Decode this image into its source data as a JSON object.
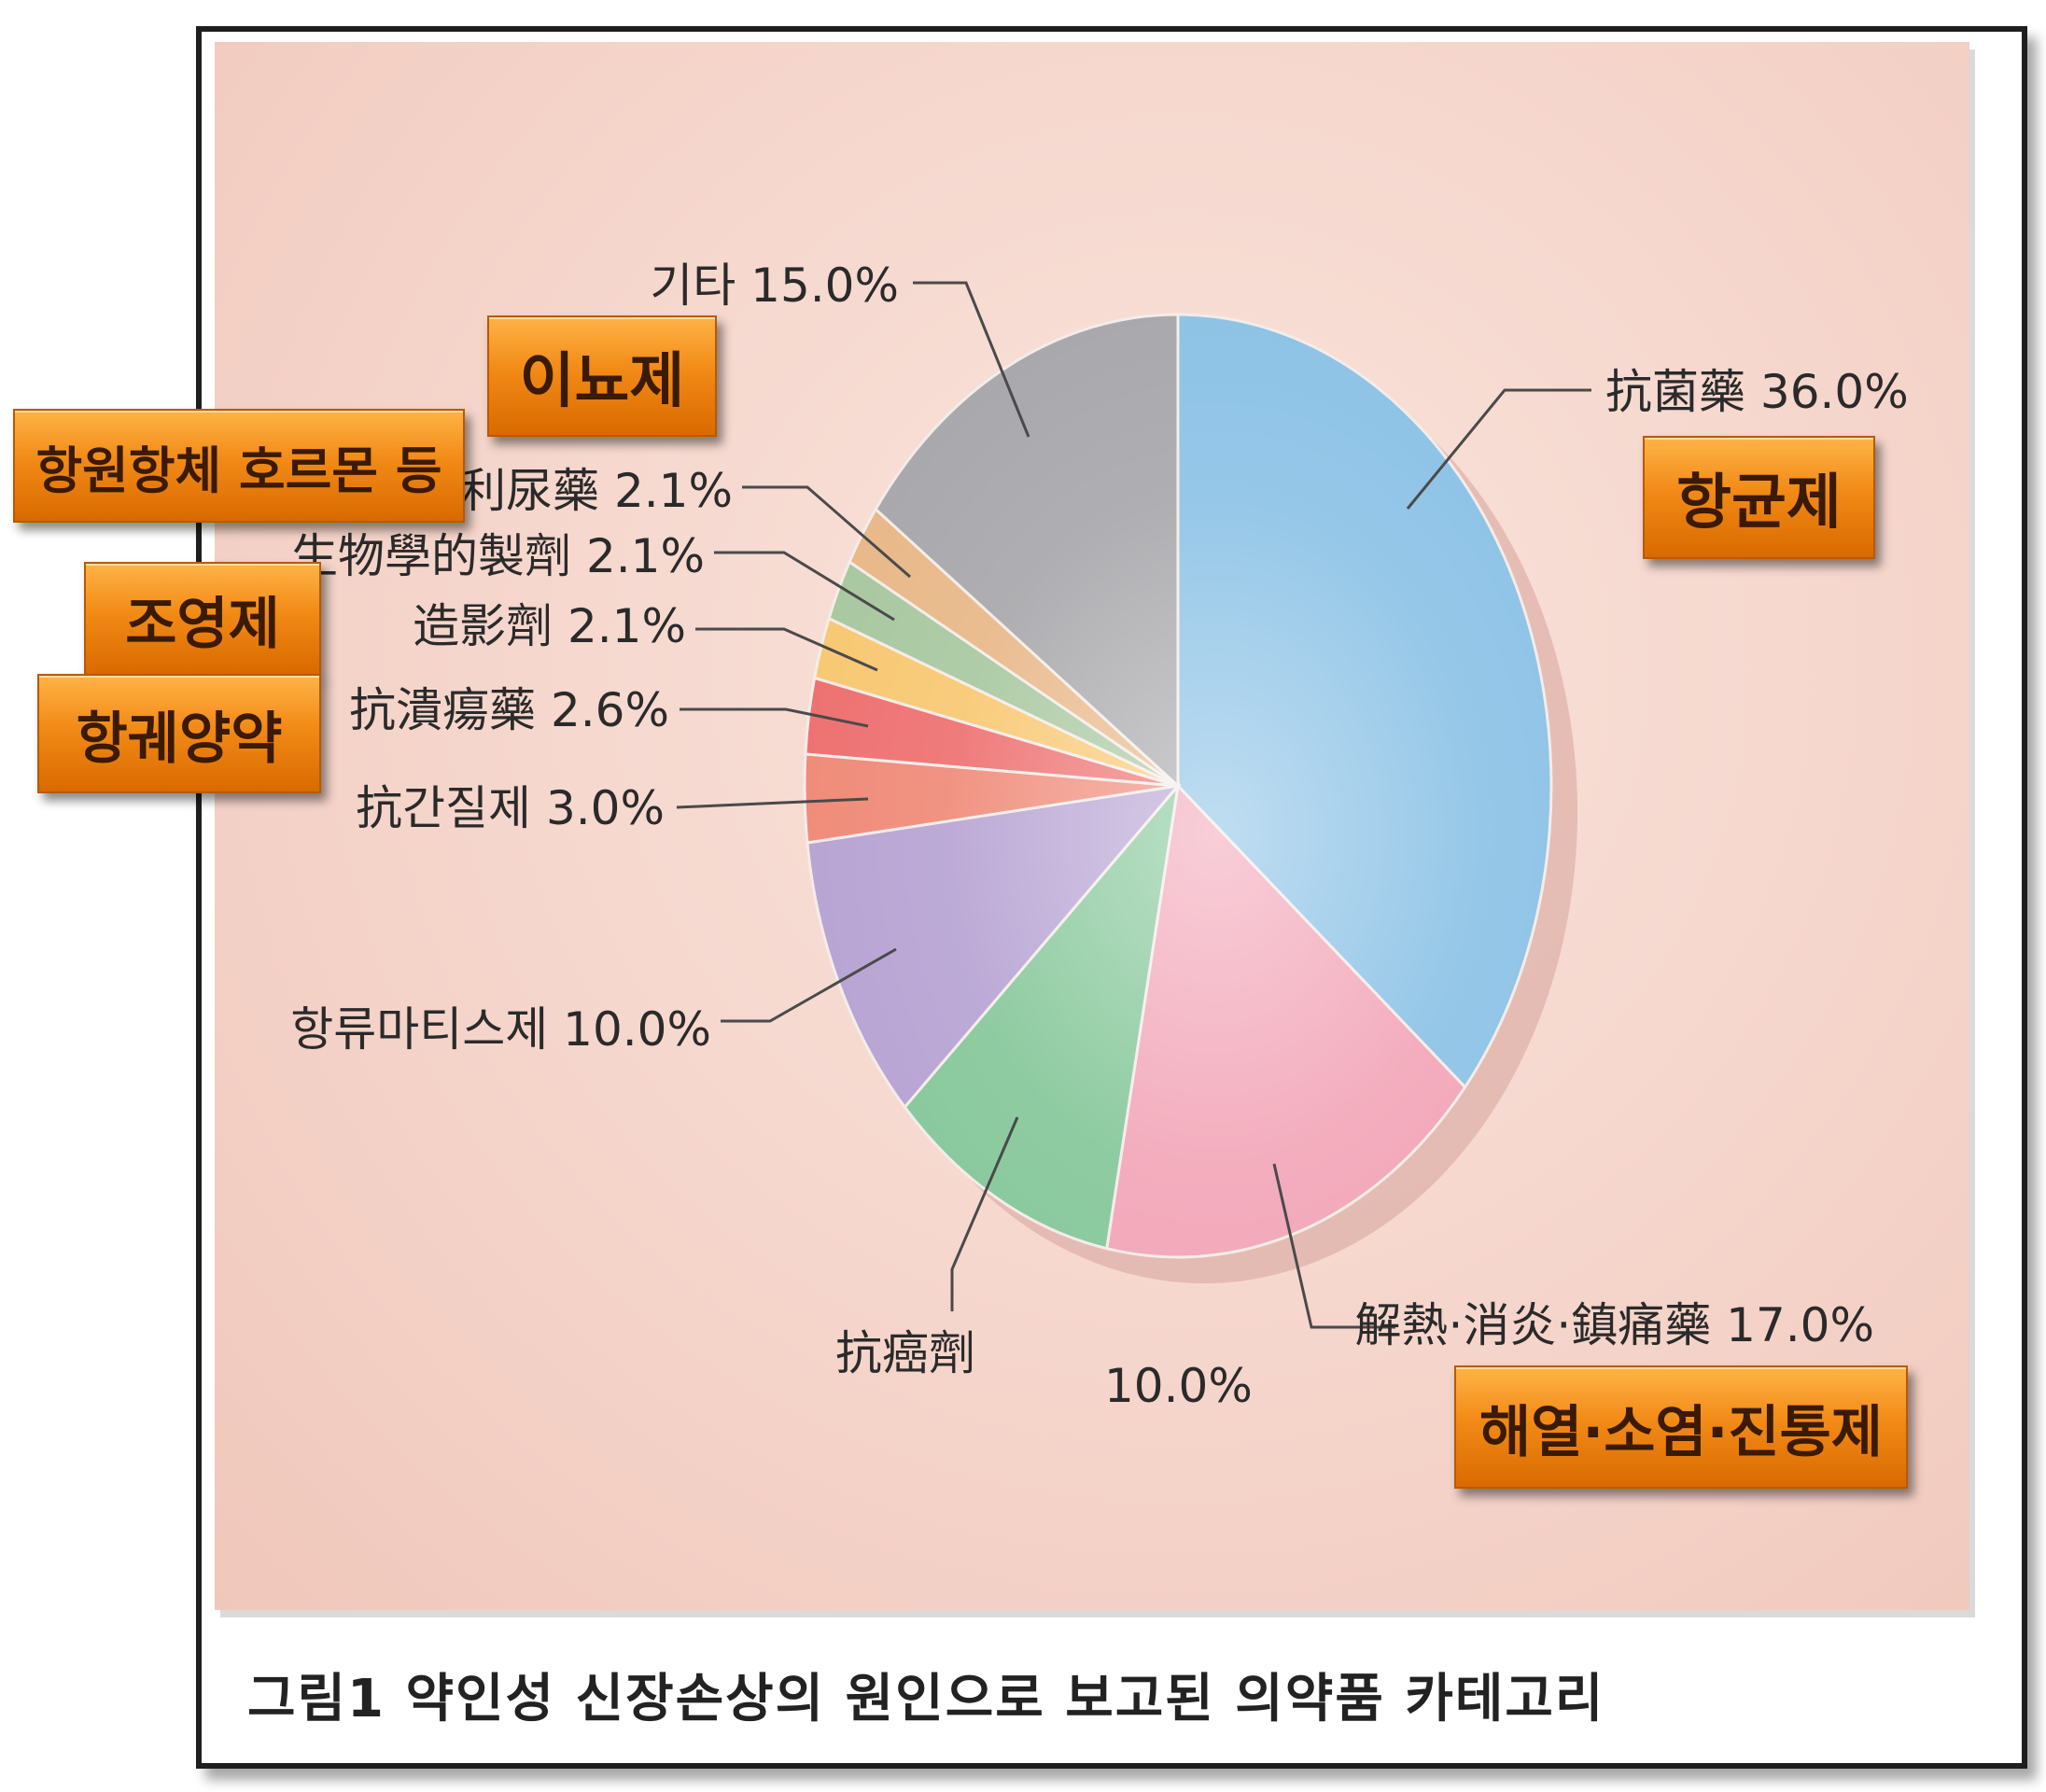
{
  "chart_data": {
    "type": "pie",
    "title": "그림1 약인성 신장손상의 원인으로 보고된 의약품 카테고리",
    "slices": [
      {
        "name": "抗菌藥",
        "value": 36.0,
        "label": "36.0%",
        "color": "#8cc2e6"
      },
      {
        "name": "解熱·消炎·鎮痛藥",
        "value": 17.0,
        "label": "17.0%",
        "color": "#f2a6b8"
      },
      {
        "name": "抗癌劑",
        "value": 10.0,
        "label": "10.0%",
        "color": "#86c79a"
      },
      {
        "name": "항류마티스제",
        "value": 10.0,
        "label": "10.0%",
        "color": "#b7a3d3"
      },
      {
        "name": "抗간질제",
        "value": 3.0,
        "label": "3.0%",
        "color": "#f08a78"
      },
      {
        "name": "抗潰瘍藥",
        "value": 2.6,
        "label": "2.6%",
        "color": "#ee7070"
      },
      {
        "name": "造影劑",
        "value": 2.1,
        "label": "2.1%",
        "color": "#f8c872"
      },
      {
        "name": "生物學的製劑",
        "value": 2.1,
        "label": "2.1%",
        "color": "#a8c8a0"
      },
      {
        "name": "利尿藥",
        "value": 2.1,
        "label": "2.1%",
        "color": "#e8b888"
      },
      {
        "name": "기타",
        "value": 15.0,
        "label": "15.0%",
        "color": "#a8a8ac"
      }
    ]
  },
  "tags": {
    "antibacterial": "항균제",
    "antipyretic": "해열·소염·진통제",
    "diuretic": "이뇨제",
    "antibody": "항원항체 호르몬 등",
    "contrast": "조영제",
    "antiulcer": "항궤양약"
  },
  "caption": "그림1 약인성 신장손상의 원인으로 보고된 의약품 카테고리"
}
